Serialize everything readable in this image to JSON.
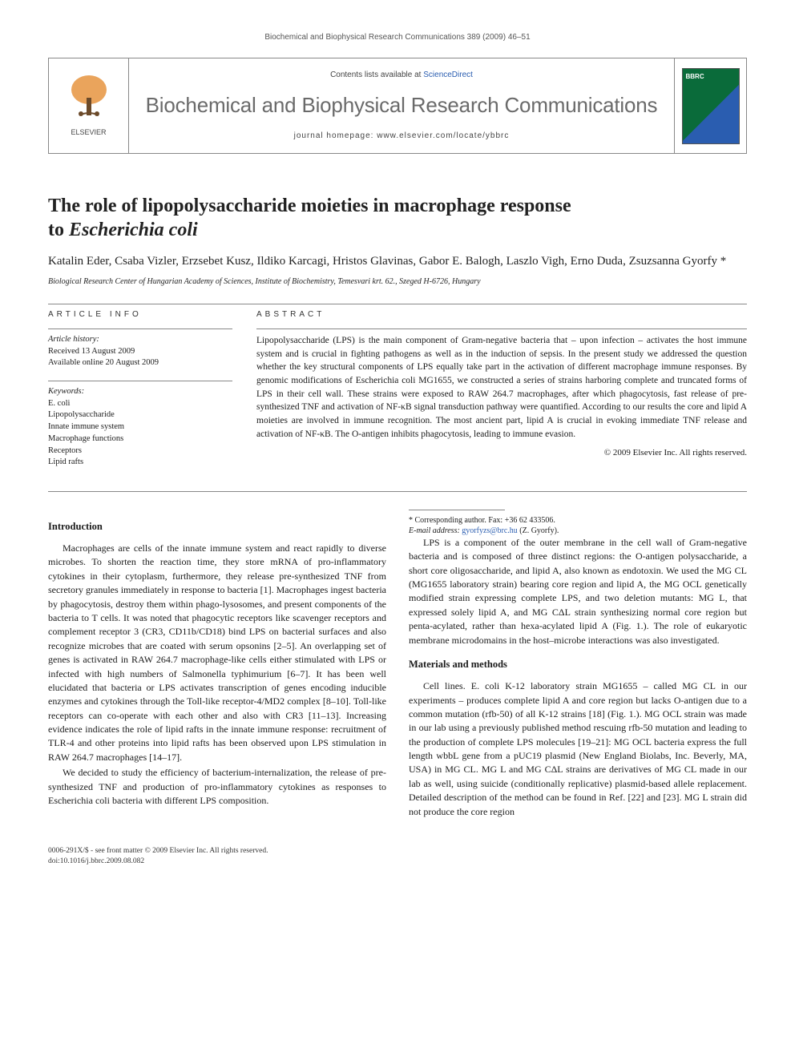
{
  "running_head": "Biochemical and Biophysical Research Communications 389 (2009) 46–51",
  "masthead": {
    "avail_prefix": "Contents lists available at ",
    "avail_link": "ScienceDirect",
    "journal": "Biochemical and Biophysical Research Communications",
    "homepage_prefix": "journal homepage: ",
    "homepage": "www.elsevier.com/locate/ybbrc",
    "publisher": "ELSEVIER"
  },
  "title_line1": "The role of lipopolysaccharide moieties in macrophage response",
  "title_line2_plain": "to ",
  "title_line2_italic": "Escherichia coli",
  "authors": "Katalin Eder, Csaba Vizler, Erzsebet Kusz, Ildiko Karcagi, Hristos Glavinas, Gabor E. Balogh, Laszlo Vigh, Erno Duda, Zsuzsanna Gyorfy *",
  "affiliation": "Biological Research Center of Hungarian Academy of Sciences, Institute of Biochemistry, Temesvari krt. 62., Szeged H-6726, Hungary",
  "article_info": {
    "label": "ARTICLE INFO",
    "history_label": "Article history:",
    "received": "Received 13 August 2009",
    "online": "Available online 20 August 2009",
    "keywords_label": "Keywords:",
    "keywords": [
      "E. coli",
      "Lipopolysaccharide",
      "Innate immune system",
      "Macrophage functions",
      "Receptors",
      "Lipid rafts"
    ]
  },
  "abstract": {
    "label": "ABSTRACT",
    "text": "Lipopolysaccharide (LPS) is the main component of Gram-negative bacteria that – upon infection – activates the host immune system and is crucial in fighting pathogens as well as in the induction of sepsis. In the present study we addressed the question whether the key structural components of LPS equally take part in the activation of different macrophage immune responses. By genomic modifications of Escherichia coli MG1655, we constructed a series of strains harboring complete and truncated forms of LPS in their cell wall. These strains were exposed to RAW 264.7 macrophages, after which phagocytosis, fast release of pre-synthesized TNF and activation of NF-κB signal transduction pathway were quantified. According to our results the core and lipid A moieties are involved in immune recognition. The most ancient part, lipid A is crucial in evoking immediate TNF release and activation of NF-κB. The O-antigen inhibits phagocytosis, leading to immune evasion.",
    "copyright": "© 2009 Elsevier Inc. All rights reserved."
  },
  "body": {
    "intro_heading": "Introduction",
    "intro_p1": "Macrophages are cells of the innate immune system and react rapidly to diverse microbes. To shorten the reaction time, they store mRNA of pro-inflammatory cytokines in their cytoplasm, furthermore, they release pre-synthesized TNF from secretory granules immediately in response to bacteria [1]. Macrophages ingest bacteria by phagocytosis, destroy them within phago-lysosomes, and present components of the bacteria to T cells. It was noted that phagocytic receptors like scavenger receptors and complement receptor 3 (CR3, CD11b/CD18) bind LPS on bacterial surfaces and also recognize microbes that are coated with serum opsonins [2–5]. An overlapping set of genes is activated in RAW 264.7 macrophage-like cells either stimulated with LPS or infected with high numbers of Salmonella typhimurium [6–7]. It has been well elucidated that bacteria or LPS activates transcription of genes encoding inducible enzymes and cytokines through the Toll-like receptor-4/MD2 complex [8–10]. Toll-like receptors can co-operate with each other and also with CR3 [11–13]. Increasing evidence indicates the role of lipid rafts in the innate immune response: recruitment of TLR-4 and other proteins into lipid rafts has been observed upon LPS stimulation in RAW 264.7 macrophages [14–17].",
    "intro_p2": "We decided to study the efficiency of bacterium-internalization, the release of pre-synthesized TNF and production of pro-inflammatory cytokines as responses to Escherichia coli bacteria with different LPS composition.",
    "intro_p3": "LPS is a component of the outer membrane in the cell wall of Gram-negative bacteria and is composed of three distinct regions: the O-antigen polysaccharide, a short core oligosaccharide, and lipid A, also known as endotoxin. We used the MG CL (MG1655 laboratory strain) bearing core region and lipid A, the MG OCL genetically modified strain expressing complete LPS, and two deletion mutants: MG L, that expressed solely lipid A, and MG CΔL strain synthesizing normal core region but penta-acylated, rather than hexa-acylated lipid A (Fig. 1.). The role of eukaryotic membrane microdomains in the host–microbe interactions was also investigated.",
    "methods_heading": "Materials and methods",
    "methods_p1": "Cell lines. E. coli K-12 laboratory strain MG1655 – called MG CL in our experiments – produces complete lipid A and core region but lacks O-antigen due to a common mutation (rfb-50) of all K-12 strains [18] (Fig. 1.). MG OCL strain was made in our lab using a previously published method rescuing rfb-50 mutation and leading to the production of complete LPS molecules [19–21]: MG OCL bacteria express the full length wbbL gene from a pUC19 plasmid (New England Biolabs, Inc. Beverly, MA, USA) in MG CL. MG L and MG CΔL strains are derivatives of MG CL made in our lab as well, using suicide (conditionally replicative) plasmid-based allele replacement. Detailed description of the method can be found in Ref. [22] and [23]. MG L strain did not produce the core region"
  },
  "footnote": {
    "corr": "* Corresponding author. Fax: +36 62 433506.",
    "email_label": "E-mail address:",
    "email": "gyorfyzs@brc.hu",
    "email_tail": " (Z. Gyorfy)."
  },
  "footer": {
    "issn": "0006-291X/$ - see front matter © 2009 Elsevier Inc. All rights reserved.",
    "doi": "doi:10.1016/j.bbrc.2009.08.082"
  }
}
